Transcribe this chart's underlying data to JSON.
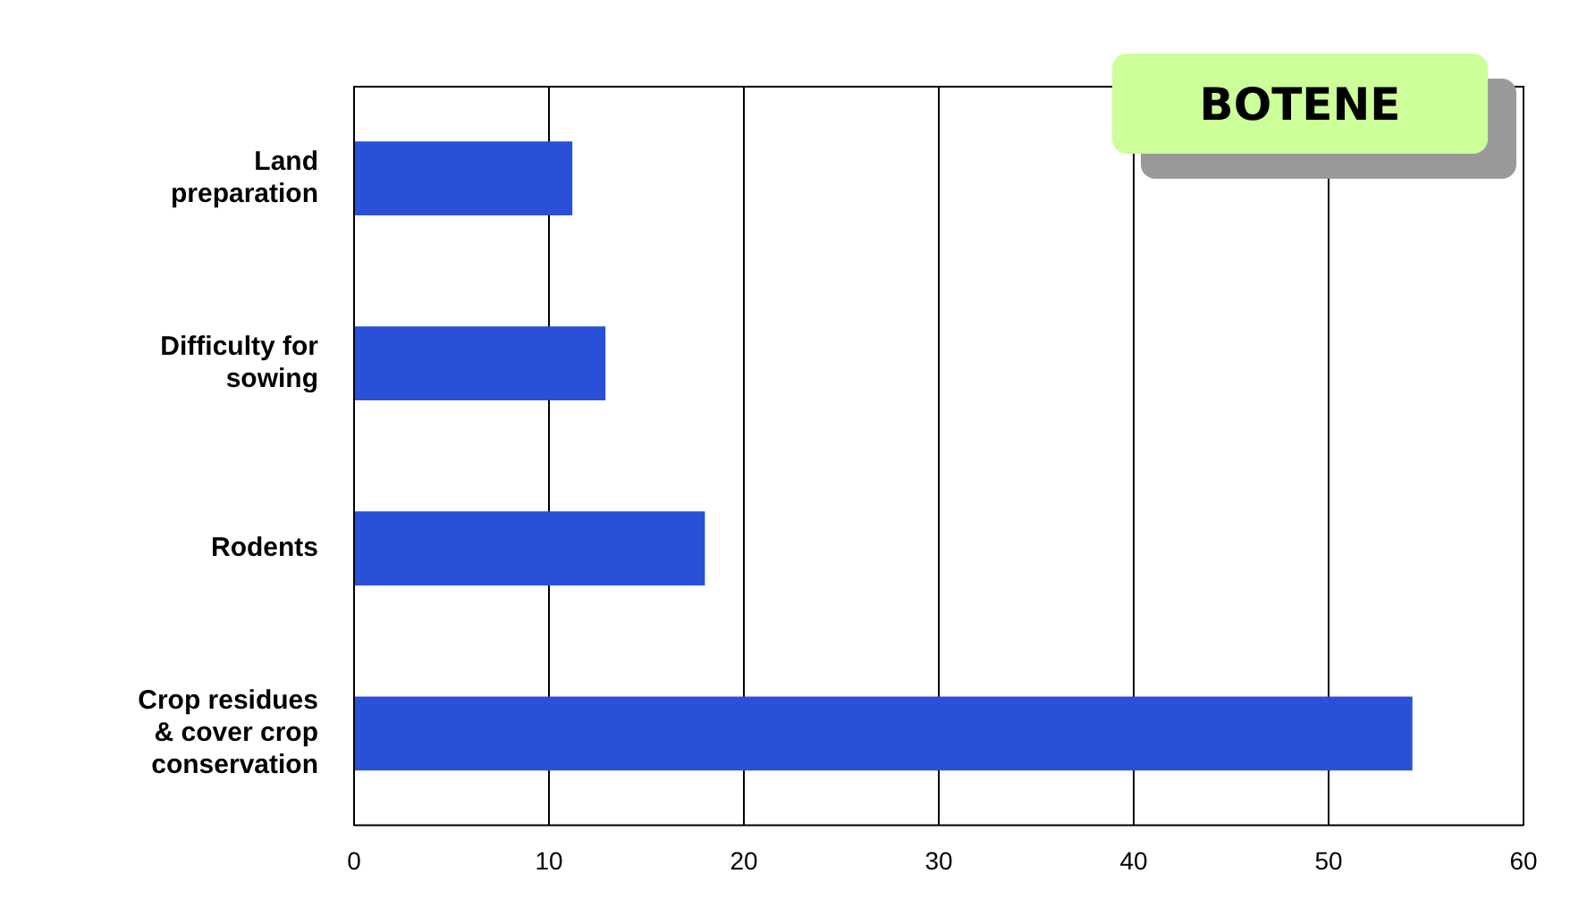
{
  "chart_data": {
    "type": "bar",
    "orientation": "horizontal",
    "title": "BOTENE",
    "categories": [
      "Land preparation",
      "Difficulty for sowing",
      "Rodents",
      "Crop residues & cover crop conservation"
    ],
    "values": [
      11.2,
      12.9,
      18,
      54.3
    ],
    "color": "#2a50d8",
    "xlim": [
      0,
      60
    ],
    "xticks": [
      0,
      10,
      20,
      30,
      40,
      50,
      60
    ],
    "grid": "x",
    "legend": false
  }
}
